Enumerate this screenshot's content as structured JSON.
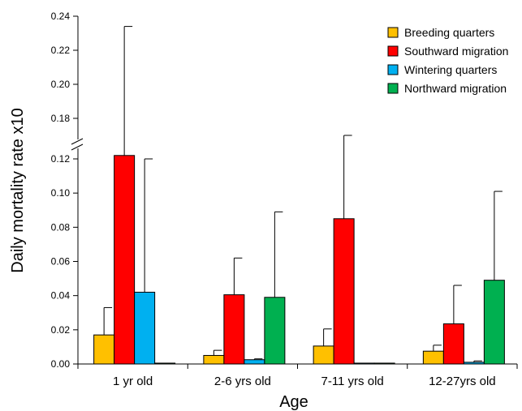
{
  "chart_data": {
    "type": "bar",
    "xlabel": "Age",
    "ylabel": "Daily mortality rate  x10",
    "categories": [
      "1 yr old",
      "2-6 yrs old",
      "7-11 yrs old",
      "12-27yrs old"
    ],
    "series": [
      {
        "name": "Breeding quarters",
        "color": "#ffc000",
        "values": [
          0.017,
          0.005,
          0.0105,
          0.0075
        ],
        "errors": [
          0.016,
          0.003,
          0.01,
          0.0035
        ]
      },
      {
        "name": "Southward migration",
        "color": "#ff0000",
        "values": [
          0.122,
          0.0405,
          0.085,
          0.0235
        ],
        "errors": [
          0.112,
          0.0215,
          0.085,
          0.0225
        ]
      },
      {
        "name": "Wintering quarters",
        "color": "#00b0f0",
        "values": [
          0.042,
          0.0025,
          0.0005,
          0.001
        ],
        "errors": [
          0.078,
          0.0005,
          0.0,
          0.0008
        ]
      },
      {
        "name": "Northward migration",
        "color": "#00b050",
        "values": [
          0.0005,
          0.039,
          0.0005,
          0.049
        ],
        "errors": [
          0.0,
          0.05,
          0.0,
          0.052
        ]
      }
    ],
    "ylim": [
      0,
      0.24
    ],
    "axis_break": [
      0.125,
      0.17
    ],
    "y_ticks_lower": [
      "0.00",
      "0.02",
      "0.04",
      "0.06",
      "0.08",
      "0.10",
      "0.12"
    ],
    "y_ticks_upper": [
      "0.18",
      "0.20",
      "0.22",
      "0.24"
    ],
    "legend_position": "top-right",
    "grid": false
  }
}
